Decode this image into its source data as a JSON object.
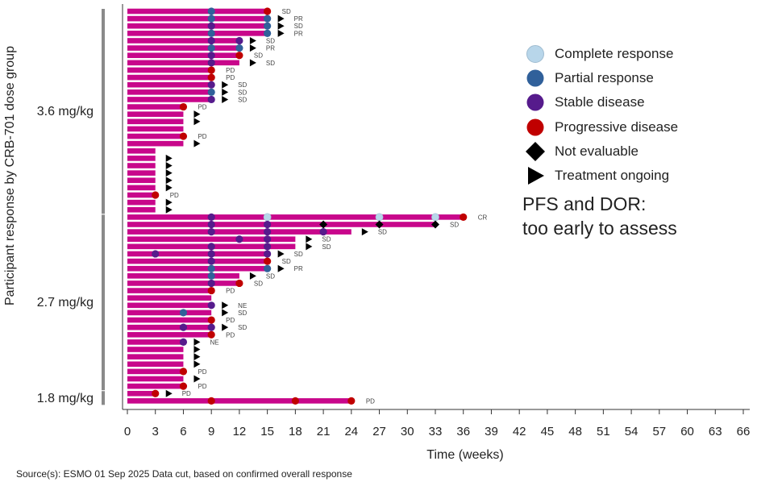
{
  "chart_data": {
    "type": "swimmer",
    "xlabel": "Time (weeks)",
    "ylabel": "Participant response by CRB-701 dose group",
    "xlim": [
      0,
      66
    ],
    "xticks": [
      0,
      3,
      6,
      9,
      12,
      15,
      18,
      21,
      24,
      27,
      30,
      33,
      36,
      39,
      42,
      45,
      48,
      51,
      54,
      57,
      60,
      63,
      66
    ],
    "colors": {
      "bar": "#c8078b",
      "CR": "#b8d6ea",
      "PR": "#30609a",
      "SD": "#561b8c",
      "PD": "#c00000",
      "NE": "#000000",
      "ongoing": "#000000"
    },
    "groups": [
      {
        "name": "3.6 mg/kg",
        "rows": [
          {
            "end": 15,
            "markers": [
              [
                9,
                "PR"
              ],
              [
                15,
                "PD"
              ]
            ],
            "ongoing": false,
            "label": "SD"
          },
          {
            "end": 15,
            "markers": [
              [
                9,
                "PR"
              ],
              [
                15,
                "PR"
              ]
            ],
            "ongoing": true,
            "label": "PR"
          },
          {
            "end": 15,
            "markers": [
              [
                9,
                "SD"
              ],
              [
                15,
                "PR"
              ]
            ],
            "ongoing": true,
            "label": "SD"
          },
          {
            "end": 15,
            "markers": [
              [
                9,
                "PR"
              ],
              [
                15,
                "PR"
              ]
            ],
            "ongoing": true,
            "label": "PR"
          },
          {
            "end": 12,
            "markers": [
              [
                9,
                "SD"
              ],
              [
                12,
                "SD"
              ]
            ],
            "ongoing": true,
            "label": "SD"
          },
          {
            "end": 12,
            "markers": [
              [
                9,
                "PR"
              ],
              [
                12,
                "PR"
              ]
            ],
            "ongoing": true,
            "label": "PR"
          },
          {
            "end": 12,
            "markers": [
              [
                9,
                "SD"
              ],
              [
                12,
                "PD"
              ]
            ],
            "ongoing": false,
            "label": "SD"
          },
          {
            "end": 12,
            "markers": [
              [
                9,
                "SD"
              ]
            ],
            "ongoing": true,
            "label": "SD"
          },
          {
            "end": 9,
            "markers": [
              [
                9,
                "PD"
              ]
            ],
            "ongoing": false,
            "label": "PD"
          },
          {
            "end": 9,
            "markers": [
              [
                9,
                "PD"
              ]
            ],
            "ongoing": false,
            "label": "PD"
          },
          {
            "end": 9,
            "markers": [
              [
                9,
                "SD"
              ]
            ],
            "ongoing": true,
            "label": "SD"
          },
          {
            "end": 9,
            "markers": [
              [
                9,
                "PR"
              ]
            ],
            "ongoing": true,
            "label": "SD"
          },
          {
            "end": 9,
            "markers": [
              [
                9,
                "SD"
              ]
            ],
            "ongoing": true,
            "label": "SD"
          },
          {
            "end": 6,
            "markers": [
              [
                6,
                "PD"
              ]
            ],
            "ongoing": false,
            "label": "PD"
          },
          {
            "end": 6,
            "markers": [],
            "ongoing": true,
            "label": ""
          },
          {
            "end": 6,
            "markers": [],
            "ongoing": true,
            "label": ""
          },
          {
            "end": 6,
            "markers": [],
            "ongoing": false,
            "label": ""
          },
          {
            "end": 6,
            "markers": [
              [
                6,
                "PD"
              ]
            ],
            "ongoing": false,
            "label": "PD"
          },
          {
            "end": 6,
            "markers": [],
            "ongoing": true,
            "label": ""
          },
          {
            "end": 3,
            "markers": [],
            "ongoing": false,
            "label": ""
          },
          {
            "end": 3,
            "markers": [],
            "ongoing": true,
            "label": ""
          },
          {
            "end": 3,
            "markers": [],
            "ongoing": true,
            "label": ""
          },
          {
            "end": 3,
            "markers": [],
            "ongoing": true,
            "label": ""
          },
          {
            "end": 3,
            "markers": [],
            "ongoing": true,
            "label": ""
          },
          {
            "end": 3,
            "markers": [],
            "ongoing": true,
            "label": ""
          },
          {
            "end": 3,
            "markers": [
              [
                3,
                "PD"
              ]
            ],
            "ongoing": false,
            "label": "PD"
          },
          {
            "end": 3,
            "markers": [],
            "ongoing": true,
            "label": ""
          },
          {
            "end": 3,
            "markers": [],
            "ongoing": true,
            "label": ""
          }
        ]
      },
      {
        "name": "2.7 mg/kg",
        "rows": [
          {
            "end": 36,
            "markers": [
              [
                9,
                "SD"
              ],
              [
                15,
                "CR"
              ],
              [
                27,
                "CR"
              ],
              [
                33,
                "CR"
              ],
              [
                36,
                "PD"
              ]
            ],
            "ongoing": false,
            "label": "CR"
          },
          {
            "end": 33,
            "markers": [
              [
                9,
                "SD"
              ],
              [
                15,
                "SD"
              ],
              [
                21,
                "NE"
              ],
              [
                27,
                "NE"
              ],
              [
                33,
                "NE"
              ]
            ],
            "ongoing": false,
            "label": "SD"
          },
          {
            "end": 24,
            "markers": [
              [
                9,
                "SD"
              ],
              [
                15,
                "SD"
              ],
              [
                21,
                "SD"
              ]
            ],
            "ongoing": true,
            "label": "SD"
          },
          {
            "end": 18,
            "markers": [
              [
                12,
                "SD"
              ],
              [
                15,
                "SD"
              ]
            ],
            "ongoing": true,
            "label": "SD"
          },
          {
            "end": 18,
            "markers": [
              [
                9,
                "SD"
              ],
              [
                15,
                "SD"
              ]
            ],
            "ongoing": true,
            "label": "SD"
          },
          {
            "end": 15,
            "markers": [
              [
                3,
                "SD"
              ],
              [
                9,
                "SD"
              ],
              [
                15,
                "SD"
              ]
            ],
            "ongoing": true,
            "label": "SD"
          },
          {
            "end": 15,
            "markers": [
              [
                9,
                "SD"
              ],
              [
                15,
                "PD"
              ]
            ],
            "ongoing": false,
            "label": "SD"
          },
          {
            "end": 15,
            "markers": [
              [
                9,
                "PR"
              ],
              [
                15,
                "PR"
              ]
            ],
            "ongoing": true,
            "label": "PR"
          },
          {
            "end": 12,
            "markers": [
              [
                9,
                "PR"
              ]
            ],
            "ongoing": true,
            "label": "SD"
          },
          {
            "end": 12,
            "markers": [
              [
                9,
                "SD"
              ],
              [
                12,
                "PD"
              ]
            ],
            "ongoing": false,
            "label": "SD"
          },
          {
            "end": 9,
            "markers": [
              [
                9,
                "PD"
              ]
            ],
            "ongoing": false,
            "label": "PD"
          },
          {
            "end": 9,
            "markers": [],
            "ongoing": false,
            "label": ""
          },
          {
            "end": 9,
            "markers": [
              [
                9,
                "SD"
              ]
            ],
            "ongoing": true,
            "label": "NE"
          },
          {
            "end": 9,
            "markers": [
              [
                6,
                "PR"
              ]
            ],
            "ongoing": true,
            "label": "SD"
          },
          {
            "end": 9,
            "markers": [
              [
                9,
                "PD"
              ]
            ],
            "ongoing": false,
            "label": "PD"
          },
          {
            "end": 9,
            "markers": [
              [
                6,
                "SD"
              ],
              [
                9,
                "SD"
              ]
            ],
            "ongoing": true,
            "label": "SD"
          },
          {
            "end": 9,
            "markers": [
              [
                9,
                "PD"
              ]
            ],
            "ongoing": false,
            "label": "PD"
          },
          {
            "end": 6,
            "markers": [
              [
                6,
                "SD"
              ]
            ],
            "ongoing": true,
            "label": "NE"
          },
          {
            "end": 6,
            "markers": [],
            "ongoing": true,
            "label": ""
          },
          {
            "end": 6,
            "markers": [],
            "ongoing": true,
            "label": ""
          },
          {
            "end": 6,
            "markers": [],
            "ongoing": true,
            "label": ""
          },
          {
            "end": 6,
            "markers": [
              [
                6,
                "PD"
              ]
            ],
            "ongoing": false,
            "label": "PD"
          },
          {
            "end": 6,
            "markers": [],
            "ongoing": true,
            "label": ""
          },
          {
            "end": 6,
            "markers": [
              [
                6,
                "PD"
              ]
            ],
            "ongoing": false,
            "label": "PD"
          }
        ]
      },
      {
        "name": "1.8 mg/kg",
        "rows": [
          {
            "end": 3,
            "markers": [
              [
                3,
                "PD"
              ]
            ],
            "ongoing": true,
            "label": "PD"
          },
          {
            "end": 24,
            "markers": [
              [
                9,
                "PD"
              ],
              [
                18,
                "PD"
              ],
              [
                24,
                "PD"
              ]
            ],
            "ongoing": false,
            "label": "PD"
          }
        ]
      }
    ],
    "legend": {
      "placement": "right",
      "items": [
        {
          "key": "CR",
          "label": "Complete response",
          "symbol": "circle"
        },
        {
          "key": "PR",
          "label": "Partial response",
          "symbol": "circle"
        },
        {
          "key": "SD",
          "label": "Stable disease",
          "symbol": "circle"
        },
        {
          "key": "PD",
          "label": "Progressive disease",
          "symbol": "circle"
        },
        {
          "key": "NE",
          "label": "Not evaluable",
          "symbol": "diamond"
        },
        {
          "key": "ongoing",
          "label": "Treatment ongoing",
          "symbol": "triangle"
        }
      ]
    },
    "annotation": [
      "PFS and DOR:",
      "too early to assess"
    ]
  },
  "footer": {
    "source": "Source(s): ESMO 01 Sep 2025 Data cut, based on confirmed  overall response"
  }
}
